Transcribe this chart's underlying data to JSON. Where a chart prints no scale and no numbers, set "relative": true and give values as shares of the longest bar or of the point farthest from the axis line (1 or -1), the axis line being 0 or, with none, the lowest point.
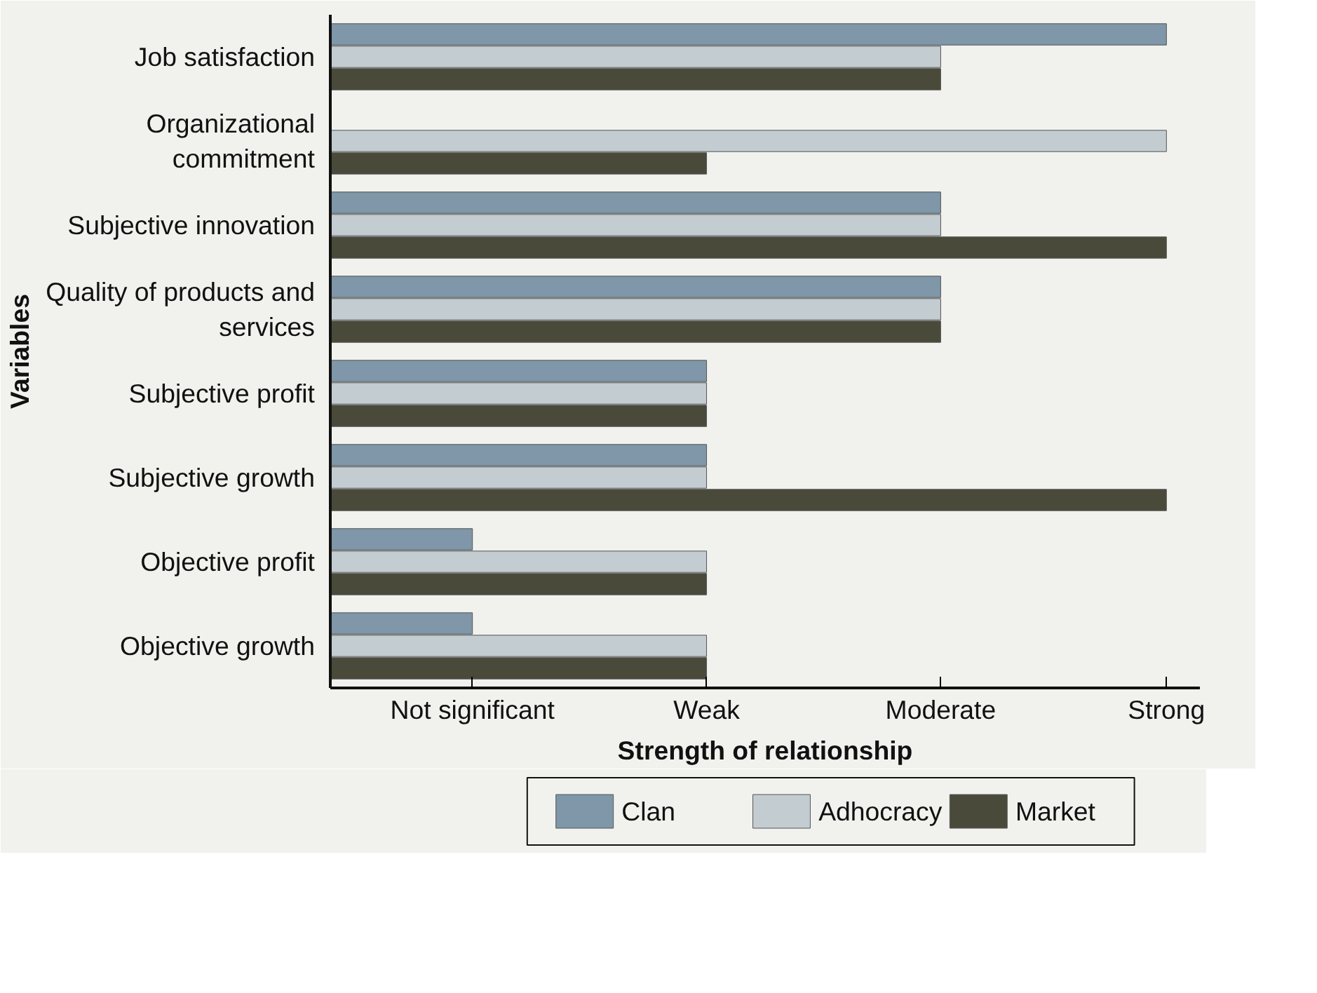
{
  "chart_data": {
    "type": "bar",
    "orientation": "horizontal",
    "relative": true,
    "xlabel": "Strength of relationship",
    "ylabel": "Variables",
    "categories": [
      "Job satisfaction",
      "Organizational commitment",
      "Subjective innovation",
      "Quality of products and services",
      "Subjective profit",
      "Subjective growth",
      "Objective profit",
      "Objective growth"
    ],
    "series": [
      {
        "name": "Clan",
        "color": "#7f97a8",
        "values": [
          1,
          null,
          0.73,
          0.73,
          0.45,
          0.45,
          0.17,
          0.17
        ]
      },
      {
        "name": "Adhocracy",
        "color": "#c3ccd1",
        "values": [
          0.73,
          1,
          0.73,
          0.73,
          0.45,
          0.45,
          0.45,
          0.45
        ]
      },
      {
        "name": "Market",
        "color": "#4a4a3a",
        "values": [
          0.73,
          0.45,
          1,
          0.73,
          0.45,
          1,
          0.45,
          0.45
        ]
      }
    ],
    "annotations": [
      {
        "text": "Not significant",
        "x": 0.17
      },
      {
        "text": "Weak",
        "x": 0.45
      },
      {
        "text": "Moderate",
        "x": 0.73
      },
      {
        "text": "Strong",
        "x": 1
      }
    ],
    "grid": false,
    "legend": "bottom"
  }
}
